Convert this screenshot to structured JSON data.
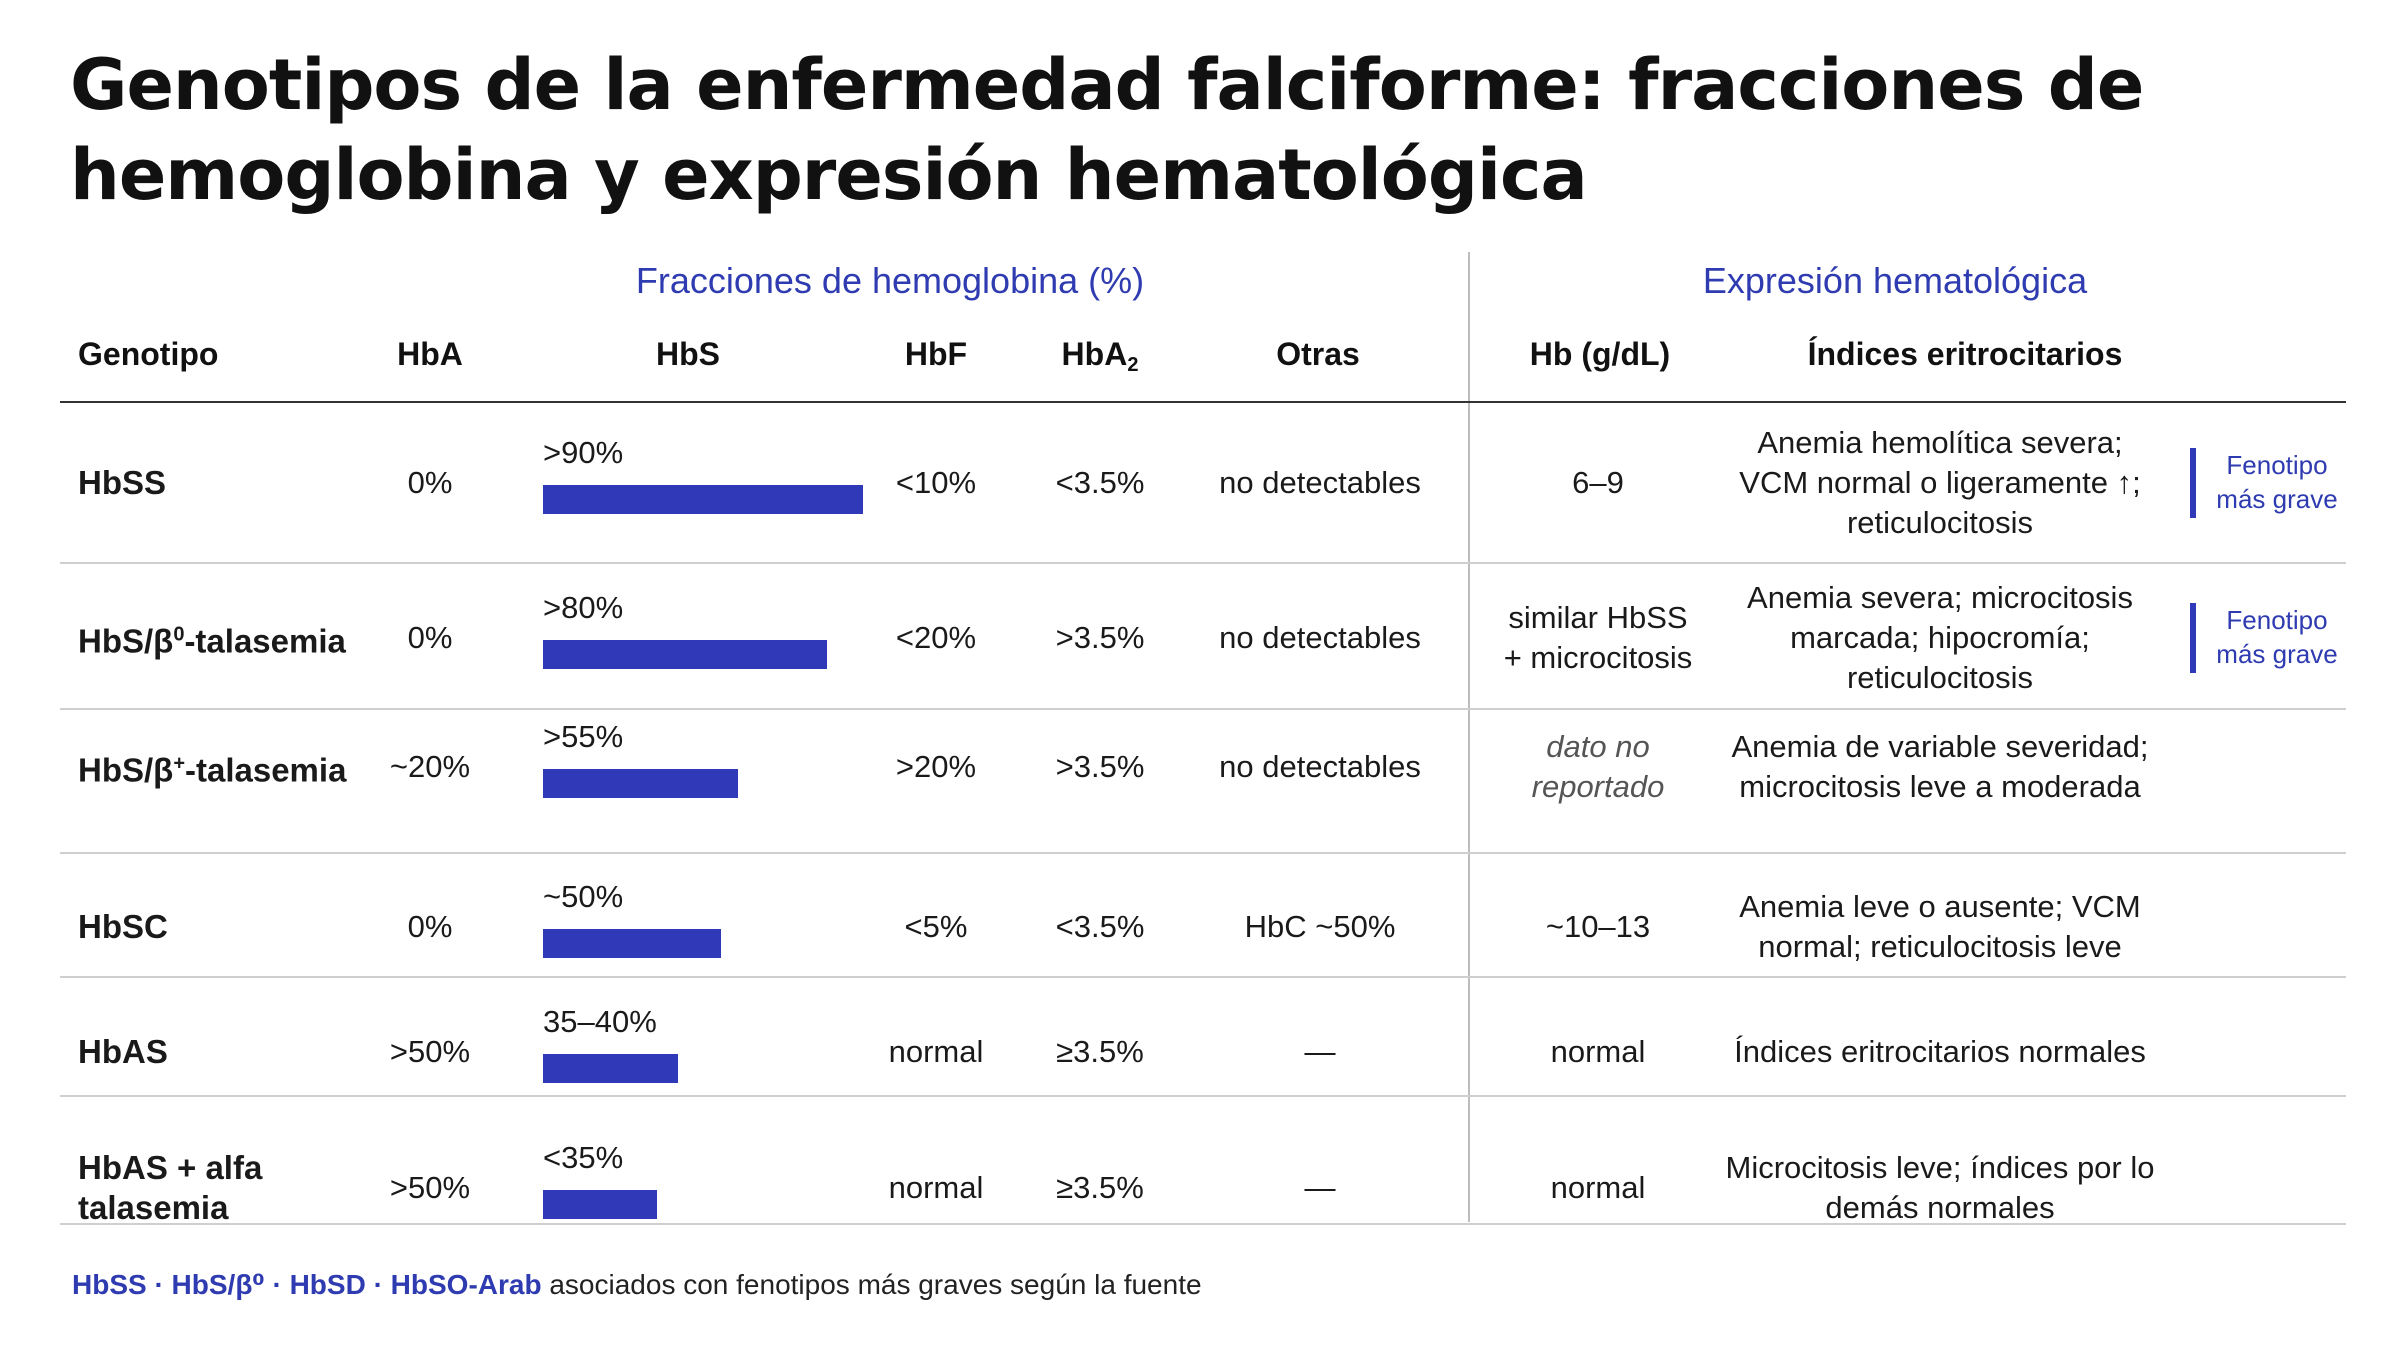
{
  "title": "Genotipos de la enfermedad falciforme: fracciones de hemoglobina y expresión hematológica",
  "groups": {
    "fractions": "Fracciones de hemoglobina (%)",
    "hematologic": "Expresión hematológica"
  },
  "headers": {
    "genotype": "Genotipo",
    "hba": "HbA",
    "hbs": "HbS",
    "hbf": "HbF",
    "hba2_main": "HbA",
    "hba2_sub": "2",
    "other": "Otras",
    "hb": "Hb (g/dL)",
    "indices": "Índices eritrocitarios"
  },
  "colors": {
    "accent": "#3039b8",
    "accent_text": "#2f3bb0"
  },
  "hbs_scale_max_percent": 100,
  "rows": [
    {
      "genotype": "HbSS",
      "genotype_sup": "",
      "genotype_tail": "",
      "hba": "0%",
      "hbs_label": ">90%",
      "hbs_value": 90,
      "hbf": "<10%",
      "hba2": "<3.5%",
      "other": "no detectables",
      "hb": "6–9",
      "hb_italic": false,
      "indices": "Anemia hemolítica severa; VCM normal o ligeramente ↑; reticulocitosis",
      "badge": "Fenotipo más grave"
    },
    {
      "genotype": "HbS/β",
      "genotype_sup": "0",
      "genotype_tail": "-talasemia",
      "hba": "0%",
      "hbs_label": ">80%",
      "hbs_value": 80,
      "hbf": "<20%",
      "hba2": ">3.5%",
      "other": "no detectables",
      "hb": "similar HbSS + microcitosis",
      "hb_italic": false,
      "indices": "Anemia severa; microcitosis marcada; hipocromía; reticulocitosis",
      "badge": "Fenotipo más grave"
    },
    {
      "genotype": "HbS/β",
      "genotype_sup": "+",
      "genotype_tail": "-talasemia",
      "hba": "~20%",
      "hbs_label": ">55%",
      "hbs_value": 55,
      "hbf": ">20%",
      "hba2": ">3.5%",
      "other": "no detectables",
      "hb": "dato no reportado",
      "hb_italic": true,
      "indices": "Anemia de variable severidad; microcitosis leve a moderada",
      "badge": ""
    },
    {
      "genotype": "HbSC",
      "genotype_sup": "",
      "genotype_tail": "",
      "hba": "0%",
      "hbs_label": "~50%",
      "hbs_value": 50,
      "hbf": "<5%",
      "hba2": "<3.5%",
      "other": "HbC ~50%",
      "hb": "~10–13",
      "hb_italic": false,
      "indices": "Anemia leve o ausente; VCM normal; reticulocitosis leve",
      "badge": ""
    },
    {
      "genotype": "HbAS",
      "genotype_sup": "",
      "genotype_tail": "",
      "hba": ">50%",
      "hbs_label": "35–40%",
      "hbs_value": 38,
      "hbf": "normal",
      "hba2": "≥3.5%",
      "other": "—",
      "hb": "normal",
      "hb_italic": false,
      "indices": "Índices eritrocitarios normales",
      "badge": ""
    },
    {
      "genotype": "HbAS + alfa talasemia",
      "genotype_sup": "",
      "genotype_tail": "",
      "hba": ">50%",
      "hbs_label": "<35%",
      "hbs_value": 32,
      "hbf": "normal",
      "hba2": "≥3.5%",
      "other": "—",
      "hb": "normal",
      "hb_italic": false,
      "indices": "Microcitosis leve; índices por lo demás normales",
      "badge": ""
    }
  ],
  "footer": {
    "highlight": "HbSS · HbS/β⁰ · HbSD · HbSO-Arab",
    "text": " asociados con fenotipos más graves según la fuente"
  }
}
